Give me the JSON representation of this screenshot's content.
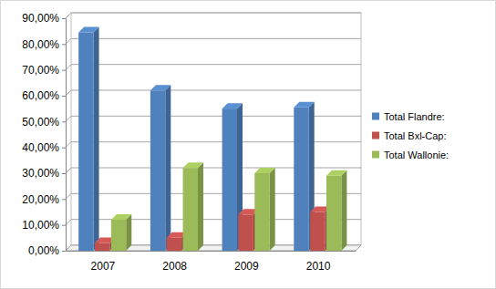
{
  "chart_data": {
    "type": "bar",
    "categories": [
      "2007",
      "2008",
      "2009",
      "2010"
    ],
    "series": [
      {
        "name": "Total Flandre:",
        "color": "#4f81bd",
        "values": [
          84.5,
          62,
          55,
          55.5
        ]
      },
      {
        "name": "Total Bxl-Cap:",
        "color": "#c0504d",
        "values": [
          3,
          5,
          14,
          15
        ]
      },
      {
        "name": "Total Wallonie:",
        "color": "#9bbb59",
        "values": [
          12,
          32,
          30,
          29
        ]
      }
    ],
    "ylim": [
      0,
      90
    ],
    "yticks": [
      {
        "value": 0,
        "label": "0,00%"
      },
      {
        "value": 10,
        "label": "10,00%"
      },
      {
        "value": 20,
        "label": "20,00%"
      },
      {
        "value": 30,
        "label": "30,00%"
      },
      {
        "value": 40,
        "label": "40,00%"
      },
      {
        "value": 50,
        "label": "50,00%"
      },
      {
        "value": 60,
        "label": "60,00%"
      },
      {
        "value": 70,
        "label": "70,00%"
      },
      {
        "value": 80,
        "label": "80,00%"
      },
      {
        "value": 90,
        "label": "90,00%"
      }
    ],
    "grid": true,
    "legend": "right"
  }
}
